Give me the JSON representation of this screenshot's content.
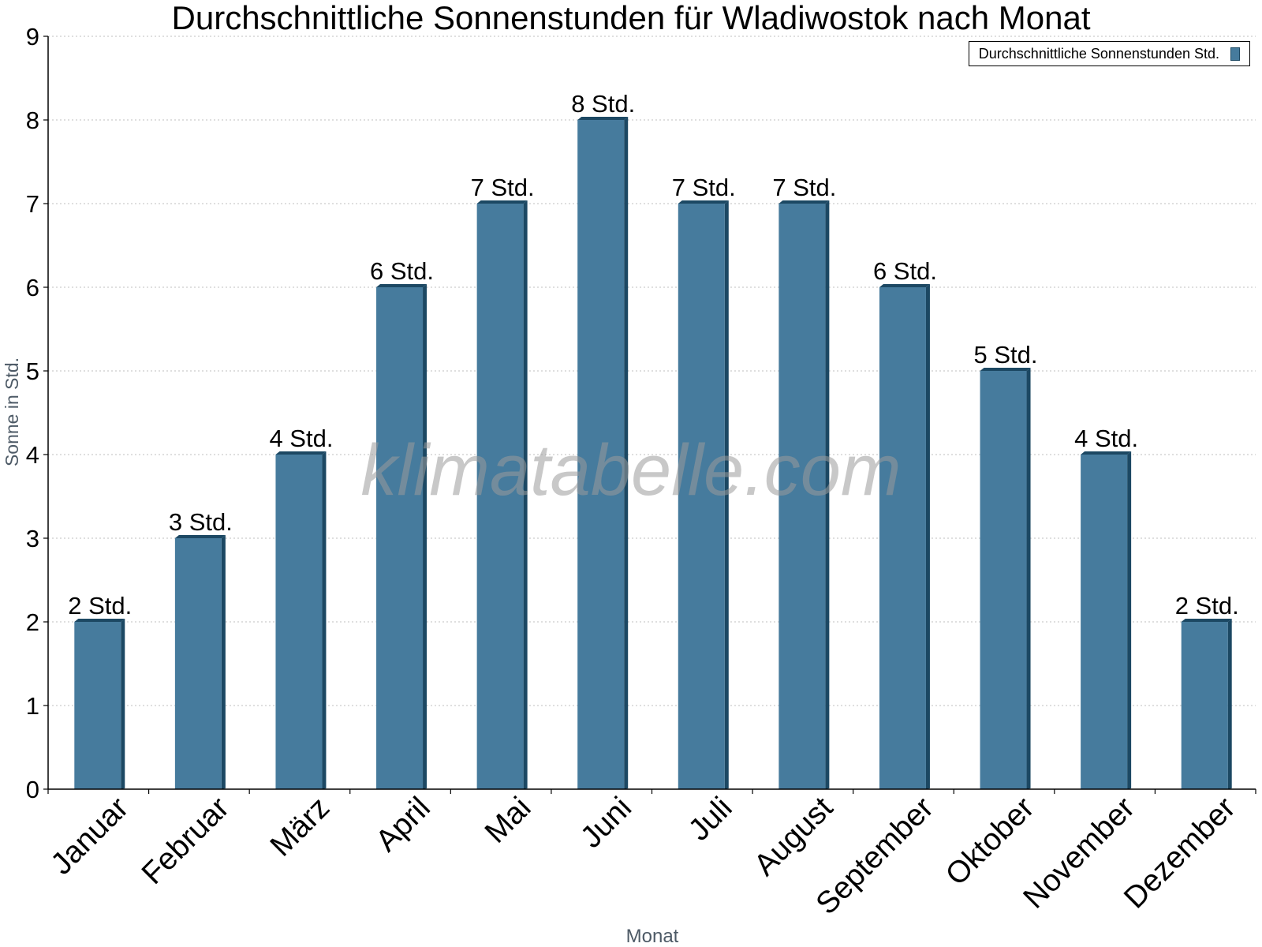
{
  "chart_data": {
    "type": "bar",
    "title": "Durchschnittliche Sonnenstunden für Wladiwostok nach Monat",
    "xlabel": "Monat",
    "ylabel": "Sonne in Std.",
    "ylim": [
      0,
      9
    ],
    "yticks": [
      "0",
      "1",
      "2",
      "3",
      "4",
      "5",
      "6",
      "7",
      "8",
      "9"
    ],
    "categories": [
      "Januar",
      "Februar",
      "März",
      "April",
      "Mai",
      "Juni",
      "Juli",
      "August",
      "September",
      "Oktober",
      "November",
      "Dezember"
    ],
    "series": [
      {
        "name": "Durchschnittliche Sonnenstunden Std.",
        "values": [
          2,
          3,
          4,
          6,
          7,
          8,
          7,
          7,
          6,
          5,
          4,
          2
        ],
        "data_labels": [
          "2 Std.",
          "3 Std.",
          "4 Std.",
          "6 Std.",
          "7 Std.",
          "8 Std.",
          "7 Std.",
          "7 Std.",
          "6 Std.",
          "5 Std.",
          "4 Std.",
          "2 Std."
        ]
      }
    ],
    "grid": true,
    "legend_position": "top-right",
    "colors": {
      "bar_fill": "#467b9d",
      "bar_side": "#1c4863",
      "grid": "#bfbfbf",
      "axis_label": "#4d5a66"
    }
  },
  "watermark": "klimatabelle.com"
}
